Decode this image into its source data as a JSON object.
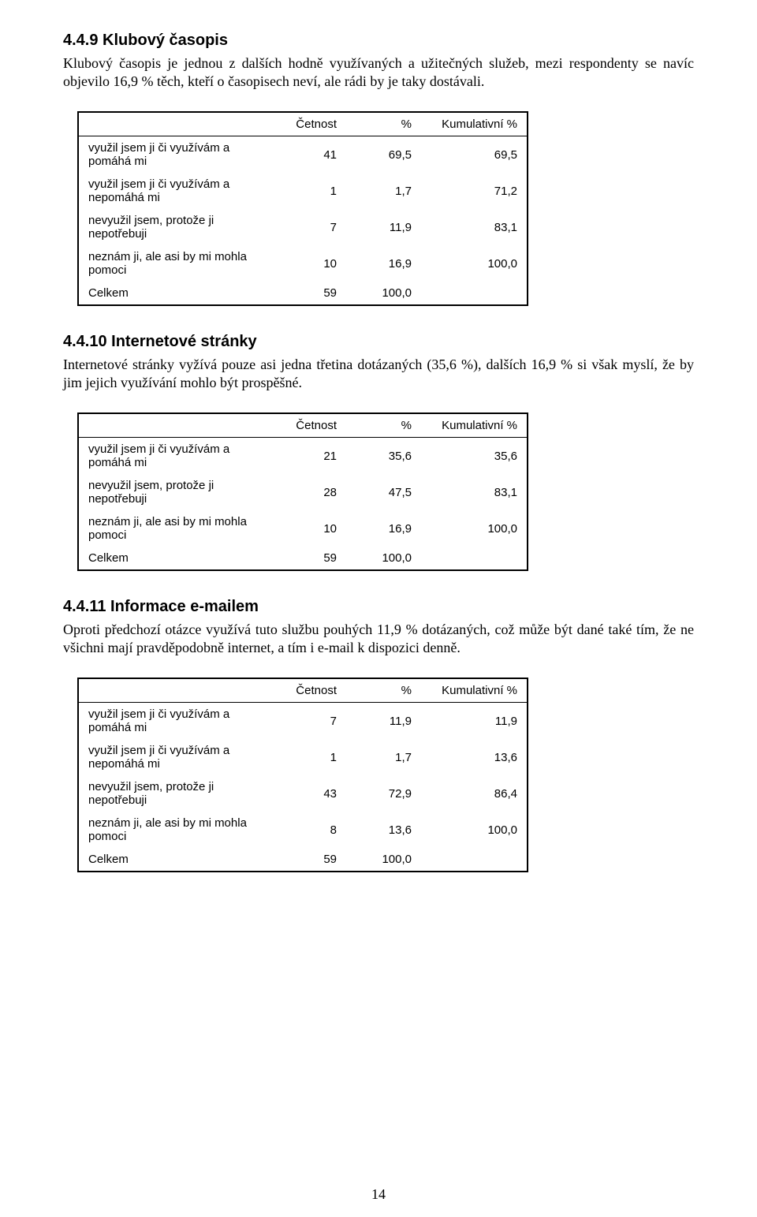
{
  "page_number": "14",
  "sections": [
    {
      "heading": "4.4.9 Klubový časopis",
      "paragraph": "Klubový časopis je jednou z dalších hodně využívaných a užitečných služeb, mezi respondenty se navíc objevilo 16,9 % těch, kteří o časopisech neví, ale rádi by je taky dostávali.",
      "table": {
        "columns": [
          "",
          "Četnost",
          "%",
          "Kumulativní %"
        ],
        "rows": [
          [
            "využil jsem ji  či využívám a pomáhá mi",
            "41",
            "69,5",
            "69,5"
          ],
          [
            "využil jsem ji  či využívám a nepomáhá mi",
            "1",
            "1,7",
            "71,2"
          ],
          [
            "nevyužil jsem, protože ji nepotřebuji",
            "7",
            "11,9",
            "83,1"
          ],
          [
            "neznám ji, ale asi by mi mohla pomoci",
            "10",
            "16,9",
            "100,0"
          ],
          [
            "Celkem",
            "59",
            "100,0",
            ""
          ]
        ]
      }
    },
    {
      "heading": "4.4.10 Internetové stránky",
      "paragraph": "Internetové stránky vyžívá pouze asi jedna třetina dotázaných (35,6 %), dalších 16,9 % si však myslí, že by jim jejich využívání mohlo být prospěšné.",
      "table": {
        "columns": [
          "",
          "Četnost",
          "%",
          "Kumulativní %"
        ],
        "rows": [
          [
            "využil jsem ji  či využívám a pomáhá mi",
            "21",
            "35,6",
            "35,6"
          ],
          [
            "nevyužil jsem, protože ji nepotřebuji",
            "28",
            "47,5",
            "83,1"
          ],
          [
            "neznám ji, ale asi by mi mohla pomoci",
            "10",
            "16,9",
            "100,0"
          ],
          [
            "Celkem",
            "59",
            "100,0",
            ""
          ]
        ]
      }
    },
    {
      "heading": "4.4.11 Informace e-mailem",
      "paragraph": "Oproti předchozí otázce využívá tuto službu pouhých 11,9 % dotázaných, což může být dané také tím, že ne všichni mají pravděpodobně internet, a tím i e-mail k dispozici denně.",
      "table": {
        "columns": [
          "",
          "Četnost",
          "%",
          "Kumulativní %"
        ],
        "rows": [
          [
            "využil jsem ji  či využívám a pomáhá mi",
            "7",
            "11,9",
            "11,9"
          ],
          [
            "využil jsem ji  či využívám a nepomáhá mi",
            "1",
            "1,7",
            "13,6"
          ],
          [
            "nevyužil jsem, protože ji nepotřebuji",
            "43",
            "72,9",
            "86,4"
          ],
          [
            "neznám ji, ale asi by mi mohla pomoci",
            "8",
            "13,6",
            "100,0"
          ],
          [
            "Celkem",
            "59",
            "100,0",
            ""
          ]
        ]
      }
    }
  ]
}
